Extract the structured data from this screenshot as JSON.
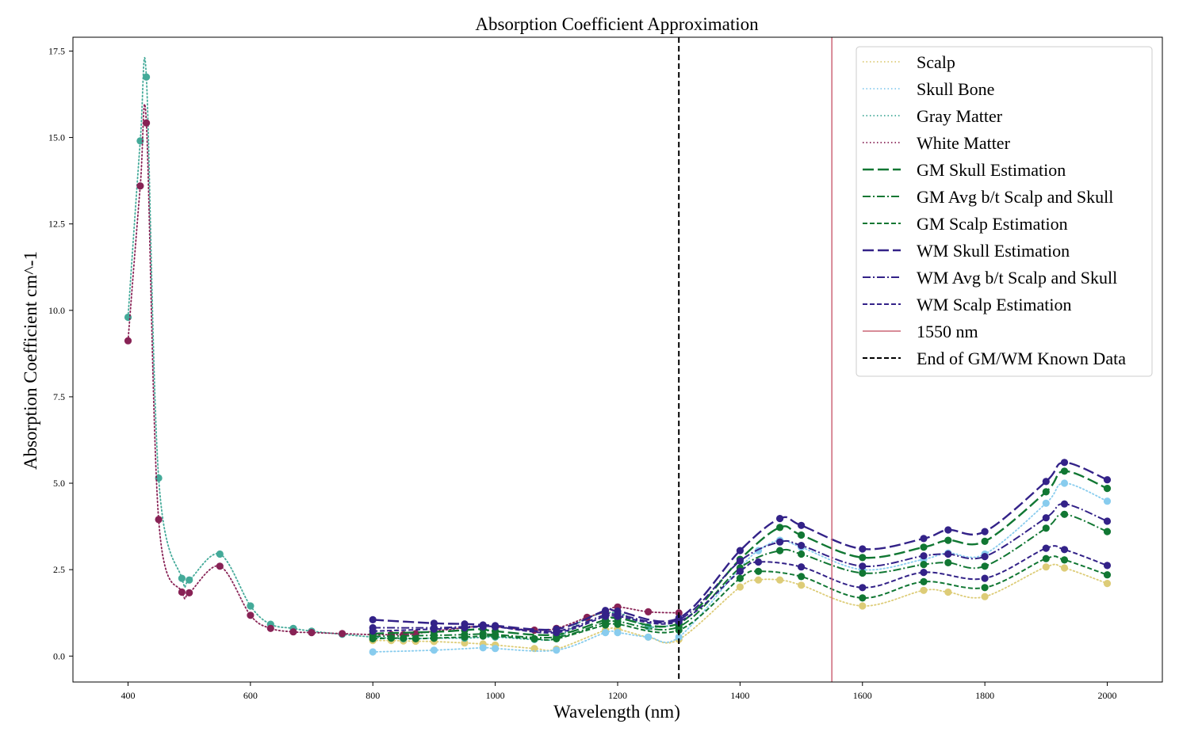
{
  "chart_data": {
    "type": "line",
    "title": "Absorption Coefficient Approximation",
    "xlabel": "Wavelength (nm)",
    "ylabel": "Absorption Coefficient cm^-1",
    "xlim": [
      310,
      2090
    ],
    "ylim": [
      -0.75,
      17.9
    ],
    "xticks": [
      400,
      600,
      800,
      1000,
      1200,
      1400,
      1600,
      1800,
      2000
    ],
    "xtick_labels": [
      "400",
      "600",
      "800",
      "1000",
      "1200",
      "1400",
      "1600",
      "1800",
      "2000"
    ],
    "yticks": [
      0,
      2.5,
      5,
      7.5,
      10,
      12.5,
      15,
      17.5
    ],
    "ytick_labels": [
      "0.0",
      "2.5",
      "5.0",
      "7.5",
      "10.0",
      "12.5",
      "15.0",
      "17.5"
    ],
    "grid": false,
    "legend_position": "top-right",
    "series": [
      {
        "name": "Scalp",
        "color": "#DDCC77",
        "dash": "dotted",
        "x": [
          800,
          830,
          850,
          870,
          900,
          950,
          980,
          1000,
          1064,
          1100,
          1180,
          1200,
          1250,
          1300,
          1400,
          1430,
          1465,
          1500,
          1600,
          1700,
          1740,
          1800,
          1900,
          1930,
          2000
        ],
        "y": [
          0.45,
          0.45,
          0.44,
          0.43,
          0.42,
          0.38,
          0.35,
          0.32,
          0.22,
          0.2,
          0.75,
          0.78,
          0.55,
          0.48,
          2.0,
          2.2,
          2.2,
          2.05,
          1.45,
          1.9,
          1.85,
          1.72,
          2.58,
          2.55,
          2.1
        ]
      },
      {
        "name": "Skull Bone",
        "color": "#88CCEE",
        "dash": "dotted",
        "x": [
          800,
          900,
          980,
          1000,
          1100,
          1180,
          1200,
          1250,
          1300,
          1400,
          1430,
          1465,
          1500,
          1600,
          1700,
          1740,
          1800,
          1900,
          1930,
          2000
        ],
        "y": [
          0.12,
          0.17,
          0.24,
          0.22,
          0.17,
          0.68,
          0.68,
          0.55,
          0.55,
          2.55,
          3.05,
          3.35,
          3.15,
          2.5,
          2.8,
          2.98,
          2.95,
          4.42,
          5.0,
          4.48
        ]
      },
      {
        "name": "Gray Matter",
        "color": "#44AA99",
        "dash": "dotted",
        "x": [
          400,
          420,
          430,
          450,
          488,
          500,
          550,
          600,
          633,
          670,
          700,
          750,
          800,
          850,
          900,
          950,
          1000,
          1064,
          1100,
          1150,
          1200,
          1250,
          1300
        ],
        "y": [
          9.8,
          14.9,
          16.75,
          5.15,
          2.25,
          2.2,
          2.95,
          1.45,
          0.92,
          0.8,
          0.72,
          0.63,
          0.55,
          0.5,
          0.52,
          0.52,
          0.55,
          0.48,
          0.52,
          1.1,
          1.25,
          0.85,
          0.92
        ]
      },
      {
        "name": "White Matter",
        "color": "#882255",
        "dash": "dotted",
        "x": [
          400,
          420,
          430,
          450,
          488,
          500,
          550,
          600,
          633,
          670,
          700,
          750,
          800,
          830,
          850,
          870,
          900,
          950,
          980,
          1000,
          1064,
          1100,
          1150,
          1180,
          1200,
          1250,
          1300
        ],
        "y": [
          9.12,
          13.6,
          15.42,
          3.95,
          1.85,
          1.83,
          2.6,
          1.18,
          0.8,
          0.7,
          0.68,
          0.65,
          0.62,
          0.62,
          0.62,
          0.65,
          0.72,
          0.82,
          0.88,
          0.85,
          0.75,
          0.8,
          1.12,
          1.28,
          1.42,
          1.28,
          1.25
        ]
      },
      {
        "name": "GM Skull Estimation",
        "color": "#117733",
        "dash": "longdash",
        "x": [
          800,
          900,
          950,
          980,
          1000,
          1100,
          1180,
          1200,
          1300,
          1400,
          1465,
          1500,
          1600,
          1700,
          1740,
          1800,
          1900,
          1930,
          2000
        ],
        "y": [
          0.65,
          0.7,
          0.75,
          0.78,
          0.72,
          0.62,
          1.05,
          1.1,
          0.95,
          2.8,
          3.72,
          3.5,
          2.85,
          3.15,
          3.35,
          3.32,
          4.75,
          5.35,
          4.85
        ]
      },
      {
        "name": "GM Avg b/t Scalp and Skull",
        "color": "#117733",
        "dash": "dashdot",
        "x": [
          800,
          900,
          950,
          980,
          1000,
          1100,
          1180,
          1200,
          1300,
          1400,
          1465,
          1500,
          1600,
          1700,
          1740,
          1800,
          1900,
          1930,
          2000
        ],
        "y": [
          0.57,
          0.6,
          0.62,
          0.64,
          0.62,
          0.55,
          0.98,
          1.0,
          0.85,
          2.55,
          3.05,
          2.95,
          2.4,
          2.65,
          2.7,
          2.6,
          3.7,
          4.1,
          3.6
        ]
      },
      {
        "name": "GM Scalp Estimation",
        "color": "#117733",
        "dash": "dashed",
        "x": [
          800,
          830,
          850,
          870,
          900,
          950,
          980,
          1000,
          1064,
          1100,
          1180,
          1200,
          1300,
          1400,
          1430,
          1500,
          1600,
          1700,
          1800,
          1900,
          1930,
          2000
        ],
        "y": [
          0.5,
          0.52,
          0.52,
          0.5,
          0.52,
          0.55,
          0.58,
          0.58,
          0.5,
          0.5,
          0.9,
          0.92,
          0.75,
          2.25,
          2.45,
          2.3,
          1.68,
          2.15,
          1.98,
          2.82,
          2.78,
          2.35
        ]
      },
      {
        "name": "WM Skull Estimation",
        "color": "#332288",
        "dash": "longdash",
        "x": [
          800,
          900,
          950,
          980,
          1000,
          1100,
          1180,
          1200,
          1300,
          1400,
          1465,
          1500,
          1600,
          1700,
          1740,
          1800,
          1900,
          1930,
          2000
        ],
        "y": [
          1.05,
          0.95,
          0.93,
          0.9,
          0.88,
          0.78,
          1.32,
          1.3,
          1.1,
          3.05,
          3.98,
          3.78,
          3.1,
          3.4,
          3.65,
          3.6,
          5.05,
          5.6,
          5.1
        ]
      },
      {
        "name": "WM Avg b/t Scalp and Skull",
        "color": "#332288",
        "dash": "dashdot",
        "x": [
          800,
          900,
          950,
          980,
          1000,
          1100,
          1180,
          1200,
          1300,
          1400,
          1465,
          1500,
          1600,
          1700,
          1740,
          1800,
          1900,
          1930,
          2000
        ],
        "y": [
          0.82,
          0.82,
          0.85,
          0.86,
          0.85,
          0.72,
          1.2,
          1.2,
          1.05,
          2.75,
          3.3,
          3.2,
          2.6,
          2.9,
          2.95,
          2.88,
          4.0,
          4.4,
          3.9
        ]
      },
      {
        "name": "WM Scalp Estimation",
        "color": "#332288",
        "dash": "dashed",
        "x": [
          800,
          900,
          950,
          980,
          1000,
          1100,
          1180,
          1200,
          1300,
          1400,
          1430,
          1500,
          1600,
          1700,
          1800,
          1900,
          1930,
          2000
        ],
        "y": [
          0.72,
          0.78,
          0.82,
          0.85,
          0.85,
          0.68,
          1.15,
          1.15,
          1.0,
          2.45,
          2.72,
          2.58,
          1.98,
          2.42,
          2.25,
          3.12,
          3.08,
          2.62
        ]
      }
    ],
    "reference_lines": [
      {
        "name": "1550 nm",
        "x": 1550,
        "color": "#CC6677",
        "style": "solid"
      },
      {
        "name": "End of GM/WM Known Data",
        "x": 1300,
        "color": "#000000",
        "style": "dashed"
      }
    ]
  }
}
